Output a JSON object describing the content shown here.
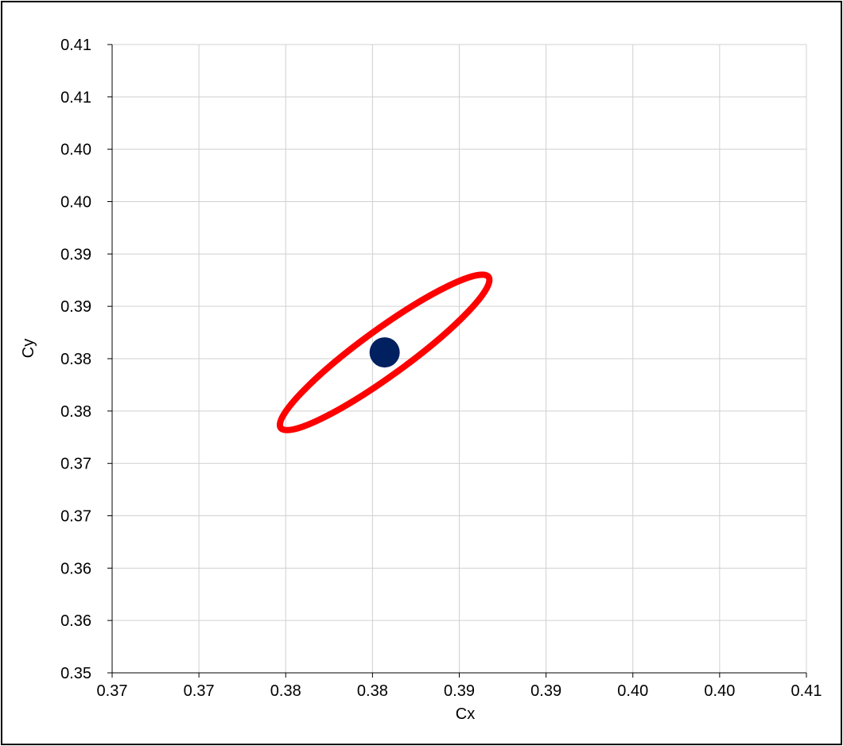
{
  "chart_data": {
    "type": "scatter",
    "title": "",
    "xlabel": "Cx",
    "ylabel": "Cy",
    "xlim": [
      0.37,
      0.41
    ],
    "ylim": [
      0.35,
      0.41
    ],
    "grid": true,
    "x_tick_labels": [
      "0.37",
      "0.37",
      "0.38",
      "0.38",
      "0.39",
      "0.39",
      "0.40",
      "0.40",
      "0.41"
    ],
    "y_tick_labels": [
      "0.35",
      "0.36",
      "0.36",
      "0.37",
      "0.37",
      "0.38",
      "0.38",
      "0.39",
      "0.39",
      "0.40",
      "0.40",
      "0.41",
      "0.41"
    ],
    "series": [
      {
        "kind": "ellipse",
        "color": "#ff0000",
        "center": [
          0.3857,
          0.3806
        ],
        "radii": [
          0.0074,
          0.0022
        ],
        "rotation_deg": 36
      },
      {
        "kind": "point",
        "color": "#002060",
        "points": [
          [
            0.3857,
            0.3806
          ]
        ]
      }
    ],
    "colors": {
      "ellipse": "#ff0000",
      "center_point": "#002060",
      "grid": "#d0d0d0",
      "axis": "#000000"
    }
  }
}
